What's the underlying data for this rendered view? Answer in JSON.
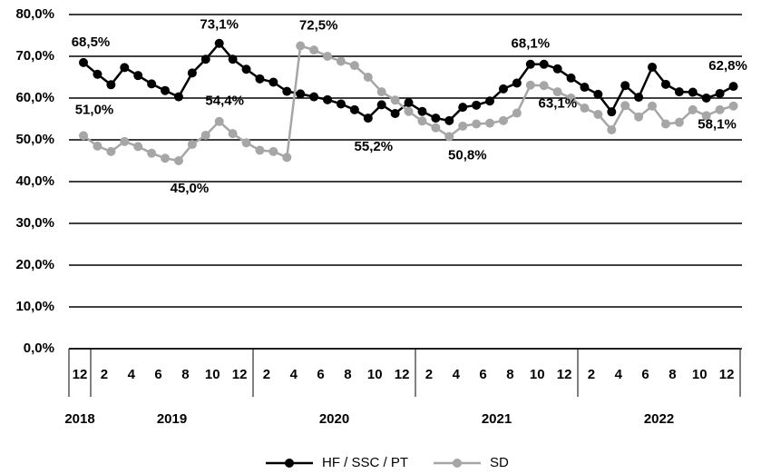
{
  "chart_data": {
    "type": "line",
    "categories": [
      "12",
      null,
      "2",
      null,
      "4",
      null,
      "6",
      null,
      "8",
      null,
      "10",
      null,
      "12",
      null,
      "2",
      null,
      "4",
      null,
      "6",
      null,
      "8",
      null,
      "10",
      null,
      "12",
      null,
      "2",
      null,
      "4",
      null,
      "6",
      null,
      "8",
      null,
      "10",
      null,
      "12",
      null,
      "2",
      null,
      "4",
      null,
      "6",
      null,
      "8",
      null,
      "10",
      null,
      "12"
    ],
    "years": [
      "2018",
      "2019",
      "2020",
      "2021",
      "2022"
    ],
    "series": [
      {
        "name": "HF / SSC / PT",
        "color": "#000000",
        "values": [
          68.5,
          65.7,
          63.2,
          67.3,
          65.4,
          63.4,
          61.8,
          60.3,
          66.0,
          69.3,
          73.1,
          69.3,
          66.9,
          64.6,
          63.8,
          61.6,
          61.0,
          60.3,
          59.6,
          58.6,
          57.2,
          55.2,
          58.4,
          56.3,
          58.9,
          56.8,
          55.2,
          54.6,
          57.8,
          58.3,
          59.3,
          62.2,
          63.6,
          68.1,
          68.1,
          67.0,
          64.8,
          62.6,
          60.9,
          56.7,
          63.0,
          60.2,
          67.4,
          63.3,
          61.5,
          61.4,
          60.0,
          61.1,
          62.8
        ],
        "value_labels": [
          "68,5%",
          null,
          null,
          null,
          null,
          null,
          null,
          null,
          null,
          null,
          "73,1%",
          null,
          null,
          null,
          null,
          null,
          null,
          null,
          null,
          null,
          null,
          "55,2%",
          null,
          null,
          null,
          null,
          null,
          null,
          null,
          null,
          null,
          null,
          null,
          "68,1%",
          null,
          null,
          null,
          null,
          null,
          null,
          null,
          null,
          null,
          null,
          null,
          null,
          null,
          null,
          "62,8%"
        ]
      },
      {
        "name": "SD",
        "color": "#a6a6a6",
        "values": [
          51.0,
          48.5,
          47.2,
          49.6,
          48.4,
          46.8,
          45.6,
          45.0,
          48.9,
          51.1,
          54.4,
          51.5,
          49.3,
          47.5,
          47.2,
          45.8,
          72.5,
          71.5,
          70.0,
          68.8,
          67.8,
          65.0,
          61.5,
          59.5,
          56.8,
          54.5,
          52.9,
          50.8,
          53.3,
          53.8,
          54.0,
          54.6,
          56.4,
          63.1,
          63.0,
          61.5,
          60.0,
          57.6,
          56.1,
          52.4,
          58.2,
          55.5,
          58.1,
          53.8,
          54.2,
          57.2,
          55.8,
          57.2,
          58.1
        ],
        "value_labels": [
          "51,0%",
          null,
          null,
          null,
          null,
          null,
          null,
          "45,0%",
          null,
          null,
          "54,4%",
          null,
          null,
          null,
          null,
          null,
          "72,5%",
          null,
          null,
          null,
          null,
          null,
          null,
          null,
          null,
          null,
          null,
          "50,8%",
          null,
          null,
          null,
          null,
          null,
          "63,1%",
          null,
          null,
          null,
          null,
          null,
          null,
          null,
          null,
          null,
          null,
          null,
          null,
          null,
          null,
          "58,1%"
        ]
      }
    ],
    "ylim": [
      0,
      80
    ],
    "yticks": [
      {
        "value": 0,
        "label": "0,0%"
      },
      {
        "value": 10,
        "label": "10,0%"
      },
      {
        "value": 20,
        "label": "20,0%"
      },
      {
        "value": 30,
        "label": "30,0%"
      },
      {
        "value": 40,
        "label": "40,0%"
      },
      {
        "value": 50,
        "label": "50,0%"
      },
      {
        "value": 60,
        "label": "60,0%"
      },
      {
        "value": 70,
        "label": "70,0%"
      },
      {
        "value": 80,
        "label": "80,0%"
      }
    ],
    "grid": true,
    "legend": "bottom"
  }
}
